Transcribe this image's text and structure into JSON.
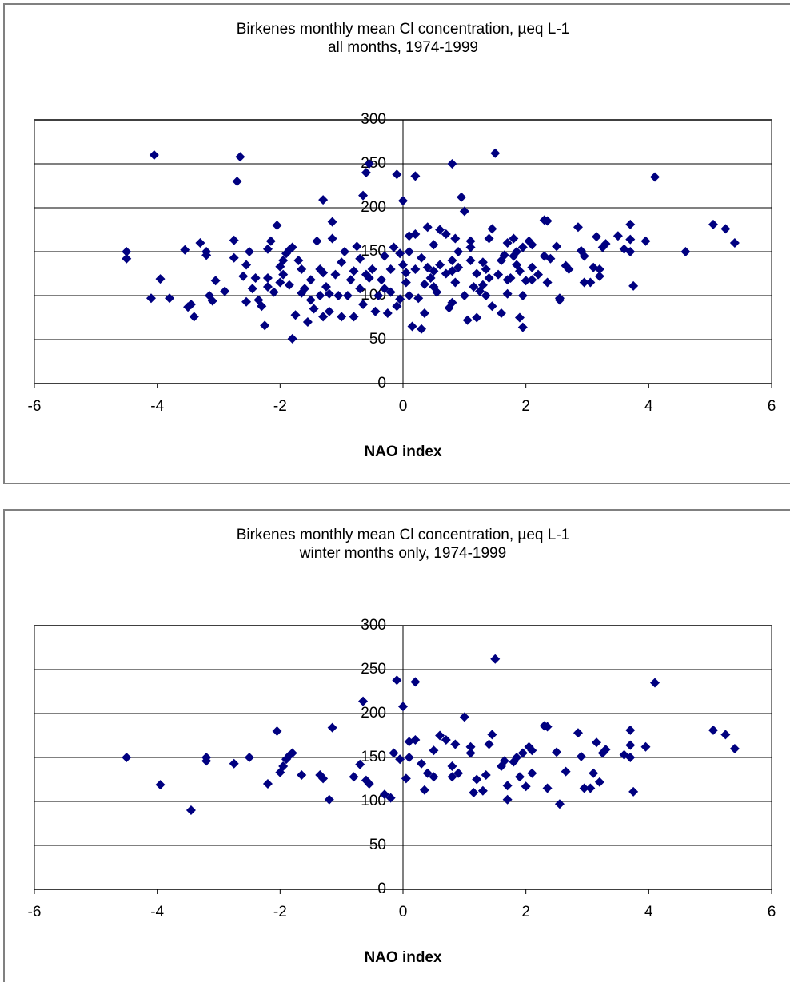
{
  "chart_data": [
    {
      "type": "scatter",
      "title": "Birkenes monthly mean Cl concentration, µeq L-1",
      "subtitle": "all months, 1974-1999",
      "x_label": "NAO index",
      "color": "#000080",
      "x": [
        -4.5,
        -3.95,
        -3.45,
        -3.2,
        -3.2,
        -2.5,
        -2.75,
        -2.2,
        -2.05,
        -2.0,
        -1.95,
        -1.9,
        -1.85,
        -1.8,
        -1.65,
        -1.35,
        -1.3,
        -1.2,
        -1.15,
        -0.8,
        -0.7,
        -0.65,
        -0.6,
        -0.55,
        -0.3,
        -0.2,
        -0.15,
        -0.1,
        -0.05,
        0,
        0.05,
        0.1,
        0.1,
        0.2,
        0.2,
        0.3,
        0.35,
        0.4,
        0.5,
        0.5,
        0.6,
        0.7,
        0.8,
        0.8,
        0.85,
        0.9,
        1.0,
        1.1,
        1.1,
        1.15,
        1.2,
        1.3,
        1.35,
        1.4,
        1.45,
        1.5,
        1.6,
        1.65,
        1.7,
        1.7,
        1.8,
        1.85,
        1.9,
        1.95,
        2.0,
        2.05,
        2.1,
        2.1,
        2.3,
        2.35,
        2.35,
        2.5,
        2.55,
        2.65,
        2.85,
        2.9,
        2.95,
        3.05,
        3.1,
        3.15,
        3.2,
        3.25,
        3.3,
        3.6,
        3.7,
        3.7,
        3.7,
        3.75,
        3.95,
        4.1,
        5.05,
        5.25,
        5.4,
        -4.5,
        -4.1,
        -4.05,
        -3.8,
        -3.55,
        -3.5,
        -3.4,
        -3.3,
        -3.15,
        -3.1,
        -3.05,
        -2.9,
        -2.75,
        -2.7,
        -2.65,
        -2.6,
        -2.55,
        -2.55,
        -2.45,
        -2.4,
        -2.35,
        -2.3,
        -2.25,
        -2.2,
        -2.2,
        -2.15,
        -2.1,
        -2.0,
        -1.95,
        -1.85,
        -1.8,
        -1.75,
        -1.7,
        -1.65,
        -1.6,
        -1.55,
        -1.5,
        -1.5,
        -1.45,
        -1.4,
        -1.35,
        -1.3,
        -1.3,
        -1.25,
        -1.2,
        -1.15,
        -1.1,
        -1.05,
        -1.0,
        -1.0,
        -0.95,
        -0.9,
        -0.85,
        -0.8,
        -0.75,
        -0.7,
        -0.65,
        -0.6,
        -0.55,
        -0.5,
        -0.45,
        -0.4,
        -0.35,
        -0.3,
        -0.25,
        -0.2,
        -0.1,
        -0.05,
        0.0,
        0.05,
        0.1,
        0.15,
        0.2,
        0.25,
        0.3,
        0.35,
        0.4,
        0.45,
        0.5,
        0.55,
        0.6,
        0.7,
        0.75,
        0.8,
        0.8,
        0.85,
        0.9,
        0.95,
        1.0,
        1.05,
        1.1,
        1.2,
        1.25,
        1.3,
        1.35,
        1.4,
        1.45,
        1.55,
        1.6,
        1.7,
        1.75,
        1.8,
        1.85,
        1.9,
        1.95,
        1.95,
        2.1,
        2.2,
        2.3,
        2.4,
        2.55,
        2.7,
        2.95,
        3.2,
        3.5,
        4.6
      ],
      "y": [
        150,
        119,
        90,
        150,
        146,
        150,
        143,
        120,
        180,
        133,
        140,
        148,
        152,
        155,
        130,
        130,
        126,
        102,
        184,
        128,
        142,
        214,
        124,
        120,
        108,
        104,
        155,
        238,
        148,
        208,
        126,
        168,
        150,
        170,
        236,
        143,
        113,
        132,
        128,
        158,
        175,
        170,
        140,
        128,
        165,
        132,
        196,
        155,
        162,
        110,
        125,
        112,
        130,
        165,
        176,
        262,
        140,
        146,
        118,
        102,
        145,
        150,
        128,
        155,
        117,
        162,
        158,
        132,
        186,
        185,
        115,
        156,
        97,
        134,
        178,
        151,
        115,
        115,
        132,
        167,
        122,
        155,
        159,
        153,
        181,
        164,
        150,
        111,
        162,
        235,
        181,
        176,
        160,
        142,
        97,
        260,
        97,
        152,
        87,
        76,
        160,
        100,
        94,
        117,
        105,
        163,
        230,
        258,
        122,
        135,
        93,
        108,
        120,
        95,
        88,
        66,
        110,
        153,
        162,
        104,
        115,
        124,
        112,
        51,
        78,
        140,
        103,
        108,
        70,
        95,
        118,
        85,
        162,
        100,
        209,
        76,
        110,
        82,
        165,
        124,
        100,
        76,
        138,
        150,
        100,
        118,
        76,
        156,
        108,
        90,
        240,
        250,
        130,
        82,
        100,
        118,
        145,
        80,
        130,
        88,
        96,
        135,
        115,
        100,
        65,
        130,
        97,
        62,
        80,
        178,
        120,
        110,
        104,
        135,
        125,
        86,
        250,
        92,
        115,
        150,
        212,
        100,
        72,
        140,
        75,
        105,
        138,
        100,
        120,
        88,
        124,
        80,
        160,
        120,
        165,
        135,
        75,
        64,
        100,
        118,
        124,
        145,
        142,
        95,
        130,
        145,
        130,
        168,
        150
      ],
      "xlim": [
        -6,
        6
      ],
      "ylim": [
        0,
        300
      ],
      "xticks": [
        -6,
        -4,
        -2,
        0,
        2,
        4,
        6
      ],
      "yticks": [
        0,
        50,
        100,
        150,
        200,
        250,
        300
      ],
      "grid": true
    },
    {
      "type": "scatter",
      "title": "Birkenes monthly mean Cl concentration, µeq L-1",
      "subtitle": "winter months only, 1974-1999",
      "x_label": "NAO index",
      "color": "#000080",
      "x": [
        -4.5,
        -3.95,
        -3.45,
        -3.2,
        -3.2,
        -2.5,
        -2.75,
        -2.2,
        -2.05,
        -2.0,
        -1.95,
        -1.9,
        -1.85,
        -1.8,
        -1.65,
        -1.35,
        -1.3,
        -1.2,
        -1.15,
        -0.8,
        -0.7,
        -0.65,
        -0.6,
        -0.55,
        -0.3,
        -0.2,
        -0.15,
        -0.1,
        -0.05,
        0,
        0.05,
        0.1,
        0.1,
        0.2,
        0.2,
        0.3,
        0.35,
        0.4,
        0.5,
        0.5,
        0.6,
        0.7,
        0.8,
        0.8,
        0.85,
        0.9,
        1.0,
        1.1,
        1.1,
        1.15,
        1.2,
        1.3,
        1.35,
        1.4,
        1.45,
        1.5,
        1.6,
        1.65,
        1.7,
        1.7,
        1.8,
        1.85,
        1.9,
        1.95,
        2.0,
        2.05,
        2.1,
        2.1,
        2.3,
        2.35,
        2.35,
        2.5,
        2.55,
        2.65,
        2.85,
        2.9,
        2.95,
        3.05,
        3.1,
        3.15,
        3.2,
        3.25,
        3.3,
        3.6,
        3.7,
        3.7,
        3.7,
        3.75,
        3.95,
        4.1,
        5.05,
        5.25,
        5.4
      ],
      "y": [
        150,
        119,
        90,
        150,
        146,
        150,
        143,
        120,
        180,
        133,
        140,
        148,
        152,
        155,
        130,
        130,
        126,
        102,
        184,
        128,
        142,
        214,
        124,
        120,
        108,
        104,
        155,
        238,
        148,
        208,
        126,
        168,
        150,
        170,
        236,
        143,
        113,
        132,
        128,
        158,
        175,
        170,
        140,
        128,
        165,
        132,
        196,
        155,
        162,
        110,
        125,
        112,
        130,
        165,
        176,
        262,
        140,
        146,
        118,
        102,
        145,
        150,
        128,
        155,
        117,
        162,
        158,
        132,
        186,
        185,
        115,
        156,
        97,
        134,
        178,
        151,
        115,
        115,
        132,
        167,
        122,
        155,
        159,
        153,
        181,
        164,
        150,
        111,
        162,
        235,
        181,
        176,
        160
      ],
      "xlim": [
        -6,
        6
      ],
      "ylim": [
        0,
        300
      ],
      "xticks": [
        -6,
        -4,
        -2,
        0,
        2,
        4,
        6
      ],
      "yticks": [
        0,
        50,
        100,
        150,
        200,
        250,
        300
      ],
      "grid": true
    }
  ]
}
